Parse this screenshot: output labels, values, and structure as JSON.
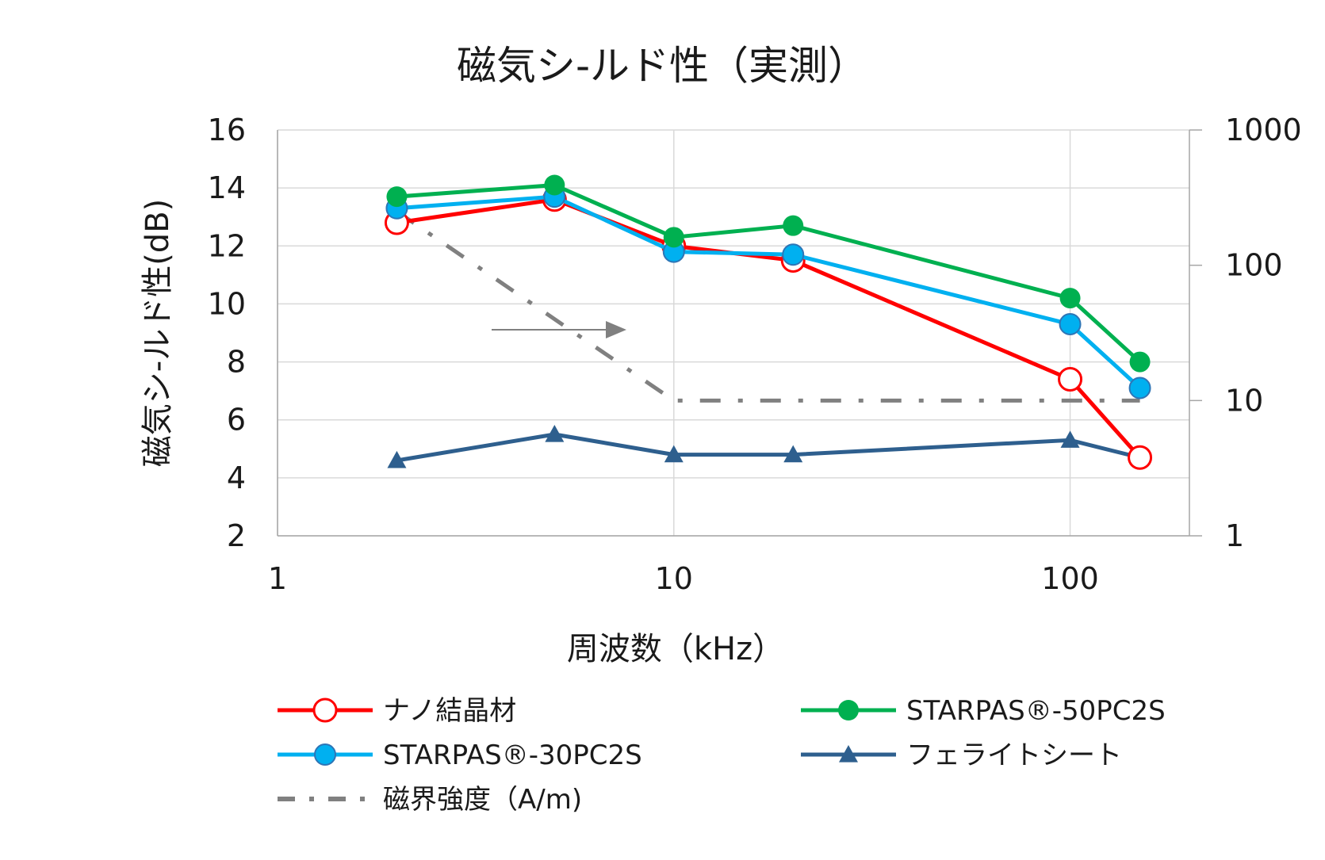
{
  "chart_data": {
    "type": "line",
    "title": "磁気シ-ルド性（実測）",
    "xlabel": "周波数（kHz）",
    "ylabel": "磁気シ-ルド性(dB)",
    "x_scale": "log",
    "xlim": [
      1,
      200
    ],
    "x_ticks": [
      "1",
      "10",
      "100"
    ],
    "ylim": [
      2,
      16
    ],
    "y_ticks": [
      "2",
      "4",
      "6",
      "8",
      "10",
      "12",
      "14",
      "16"
    ],
    "y2_scale": "log",
    "y2lim": [
      1,
      1000
    ],
    "y2_ticks": [
      "1",
      "10",
      "100",
      "1000"
    ],
    "grid": true,
    "legend_position": "bottom",
    "annotation": "right-arrow",
    "series": [
      {
        "name": "ナノ結晶材",
        "axis": "left",
        "color": "#ff0000",
        "marker": "circle-open",
        "x": [
          2,
          5,
          10,
          20,
          100,
          150
        ],
        "y": [
          12.8,
          13.6,
          12.0,
          11.5,
          7.4,
          4.7
        ]
      },
      {
        "name": "STARPAS®-50PC2S",
        "axis": "left",
        "color": "#00b050",
        "marker": "circle-filled",
        "x": [
          2,
          5,
          10,
          20,
          100,
          150
        ],
        "y": [
          13.7,
          14.1,
          12.3,
          12.7,
          10.2,
          8.0
        ]
      },
      {
        "name": "STARPAS®-30PC2S",
        "axis": "left",
        "color": "#00b0f0",
        "marker": "circle-blue",
        "x": [
          2,
          5,
          10,
          20,
          100,
          150
        ],
        "y": [
          13.3,
          13.7,
          11.8,
          11.7,
          9.3,
          7.1
        ]
      },
      {
        "name": "フェライトシート",
        "axis": "left",
        "color": "#2e5f8e",
        "marker": "triangle",
        "x": [
          2,
          5,
          10,
          20,
          100,
          150
        ],
        "y": [
          4.6,
          5.5,
          4.8,
          4.8,
          5.3,
          4.7
        ]
      },
      {
        "name": "磁界強度（A/m)",
        "axis": "right",
        "color": "#808080",
        "marker": "none",
        "dash": "dash-dot",
        "x": [
          2,
          10,
          150
        ],
        "y": [
          250,
          10,
          10
        ]
      }
    ]
  }
}
